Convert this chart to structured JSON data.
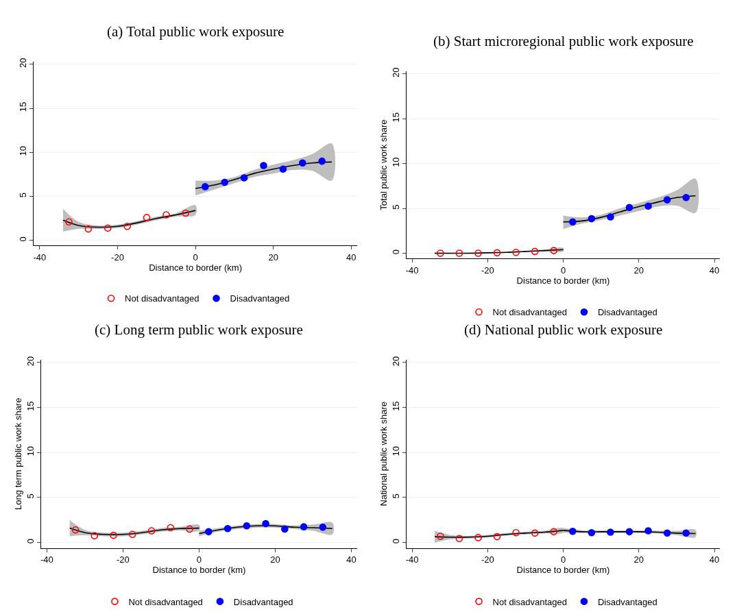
{
  "chart_data": [
    {
      "type": "scatter",
      "title": "(a) Total public work exposure",
      "xlabel": "Distance to border (km)",
      "xlim": [
        -41.5,
        41.5
      ],
      "xticks": [
        -40,
        -20,
        0,
        20,
        40
      ],
      "ylim": [
        -0.6,
        20.3
      ],
      "yticks": [
        0,
        5,
        10,
        15,
        20
      ],
      "grid": "y",
      "legend": "bottom",
      "series": [
        {
          "name": "Not disadvantaged",
          "color": "#ff0000",
          "marker": "circle",
          "x": [
            -32.5,
            -27.5,
            -22.5,
            -17.5,
            -12.5,
            -7.5,
            -2.5
          ],
          "values": [
            2.1,
            1.3,
            1.4,
            1.6,
            2.6,
            2.9,
            3.1
          ]
        },
        {
          "name": "Disadvantaged",
          "color": "#0000ff",
          "marker": "circle",
          "x": [
            2.5,
            7.5,
            12.5,
            17.5,
            22.5,
            27.5,
            32.5
          ],
          "values": [
            6.1,
            6.6,
            7.1,
            8.5,
            8.1,
            8.8,
            9.0
          ]
        },
        {
          "type": "line",
          "color": "#000000",
          "x": [
            -34,
            -30,
            -25,
            -20,
            -15,
            -10,
            -5,
            0
          ],
          "values": [
            2.3,
            1.7,
            1.5,
            1.6,
            2.0,
            2.5,
            2.9,
            3.4
          ],
          "lower": [
            1.0,
            1.3,
            1.3,
            1.4,
            1.8,
            2.3,
            2.7,
            2.9
          ],
          "upper": [
            3.6,
            2.1,
            1.7,
            1.8,
            2.2,
            2.7,
            3.1,
            4.0
          ]
        },
        {
          "type": "line",
          "color": "#000000",
          "x": [
            0,
            5,
            10,
            15,
            20,
            25,
            30,
            35
          ],
          "values": [
            5.9,
            6.3,
            6.9,
            7.6,
            8.1,
            8.5,
            8.8,
            8.9
          ],
          "lower": [
            5.1,
            5.8,
            6.5,
            7.2,
            7.6,
            8.0,
            7.9,
            6.8
          ],
          "upper": [
            6.8,
            6.8,
            7.2,
            8.0,
            8.6,
            9.1,
            9.8,
            11.0
          ]
        }
      ]
    },
    {
      "type": "scatter",
      "title": "(b) Start microregional public work exposure",
      "xlabel": "Distance to border (km)",
      "ylabel": "Total public work share",
      "xlim": [
        -41.5,
        41.5
      ],
      "xticks": [
        -40,
        -20,
        0,
        20,
        40
      ],
      "ylim": [
        -0.6,
        20.3
      ],
      "yticks": [
        0,
        5,
        10,
        15,
        20
      ],
      "grid": "y",
      "legend": "bottom",
      "series": [
        {
          "name": "Not disadvantaged",
          "color": "#ff0000",
          "marker": "circle",
          "x": [
            -32.5,
            -27.5,
            -22.5,
            -17.5,
            -12.5,
            -7.5,
            -2.5
          ],
          "values": [
            0.0,
            0.0,
            0.0,
            0.05,
            0.1,
            0.2,
            0.3
          ]
        },
        {
          "name": "Disadvantaged",
          "color": "#0000ff",
          "marker": "circle",
          "x": [
            2.5,
            7.5,
            12.5,
            17.5,
            22.5,
            27.5,
            32.5
          ],
          "values": [
            3.5,
            3.85,
            4.05,
            5.1,
            5.25,
            5.95,
            6.2
          ]
        },
        {
          "type": "line",
          "color": "#000000",
          "x": [
            -34,
            -30,
            -25,
            -20,
            -15,
            -10,
            -5,
            0
          ],
          "values": [
            0.0,
            0.0,
            0.0,
            0.05,
            0.1,
            0.2,
            0.3,
            0.4
          ],
          "lower": [
            -0.1,
            -0.05,
            -0.05,
            0.0,
            0.05,
            0.15,
            0.2,
            0.2
          ],
          "upper": [
            0.1,
            0.05,
            0.05,
            0.1,
            0.15,
            0.25,
            0.4,
            0.6
          ]
        },
        {
          "type": "line",
          "color": "#000000",
          "x": [
            0,
            5,
            10,
            15,
            20,
            25,
            30,
            35
          ],
          "values": [
            3.5,
            3.6,
            4.0,
            4.6,
            5.2,
            5.7,
            6.2,
            6.4
          ],
          "lower": [
            2.7,
            3.3,
            3.7,
            4.2,
            4.7,
            5.2,
            5.3,
            4.5
          ],
          "upper": [
            4.2,
            4.0,
            4.3,
            5.0,
            5.6,
            6.2,
            7.0,
            8.3
          ]
        }
      ]
    },
    {
      "type": "scatter",
      "title": "(c) Long term public work exposure",
      "xlabel": "Distance to border (km)",
      "ylabel": "Long term public work share",
      "xlim": [
        -41.5,
        41.5
      ],
      "xticks": [
        -40,
        -20,
        0,
        20,
        40
      ],
      "ylim": [
        -0.6,
        20.3
      ],
      "yticks": [
        0,
        5,
        10,
        15,
        20
      ],
      "grid": "y",
      "legend": "bottom",
      "series": [
        {
          "name": "Not disadvantaged",
          "color": "#ff0000",
          "marker": "circle",
          "x": [
            -32.5,
            -27.5,
            -22.5,
            -17.5,
            -12.5,
            -7.5,
            -2.5
          ],
          "values": [
            1.4,
            0.75,
            0.8,
            0.9,
            1.3,
            1.65,
            1.5
          ]
        },
        {
          "name": "Disadvantaged",
          "color": "#0000ff",
          "marker": "circle",
          "x": [
            2.5,
            7.5,
            12.5,
            17.5,
            22.5,
            27.5,
            32.5
          ],
          "values": [
            1.2,
            1.55,
            1.85,
            2.1,
            1.5,
            1.75,
            1.7
          ]
        },
        {
          "type": "line",
          "color": "#000000",
          "x": [
            -34,
            -30,
            -25,
            -20,
            -15,
            -10,
            -5,
            0
          ],
          "values": [
            1.6,
            1.1,
            0.9,
            0.9,
            1.1,
            1.4,
            1.55,
            1.6
          ],
          "lower": [
            0.7,
            0.8,
            0.7,
            0.7,
            0.9,
            1.2,
            1.35,
            1.3
          ],
          "upper": [
            2.5,
            1.4,
            1.1,
            1.1,
            1.3,
            1.6,
            1.75,
            1.95
          ]
        },
        {
          "type": "line",
          "color": "#000000",
          "x": [
            0,
            5,
            10,
            15,
            20,
            25,
            30,
            35
          ],
          "values": [
            1.0,
            1.4,
            1.7,
            1.85,
            1.85,
            1.7,
            1.65,
            1.55
          ],
          "lower": [
            0.7,
            1.2,
            1.5,
            1.65,
            1.65,
            1.5,
            1.3,
            0.9
          ],
          "upper": [
            1.3,
            1.6,
            1.9,
            2.05,
            2.05,
            1.9,
            2.0,
            2.2
          ]
        }
      ]
    },
    {
      "type": "scatter",
      "title": "(d) National public work exposure",
      "xlabel": "Distance to border (km)",
      "ylabel": "National public work share",
      "xlim": [
        -41.5,
        41.5
      ],
      "xticks": [
        -40,
        -20,
        0,
        20,
        40
      ],
      "ylim": [
        -0.6,
        20.3
      ],
      "yticks": [
        0,
        5,
        10,
        15,
        20
      ],
      "grid": "y",
      "legend": "bottom",
      "series": [
        {
          "name": "Not disadvantaged",
          "color": "#ff0000",
          "marker": "circle",
          "x": [
            -32.5,
            -27.5,
            -22.5,
            -17.5,
            -12.5,
            -7.5,
            -2.5
          ],
          "values": [
            0.7,
            0.45,
            0.55,
            0.65,
            1.1,
            1.05,
            1.2
          ]
        },
        {
          "name": "Disadvantaged",
          "color": "#0000ff",
          "marker": "circle",
          "x": [
            2.5,
            7.5,
            12.5,
            17.5,
            22.5,
            27.5,
            32.5
          ],
          "values": [
            1.25,
            1.1,
            1.15,
            1.2,
            1.3,
            1.05,
            1.05
          ]
        },
        {
          "type": "line",
          "color": "#000000",
          "x": [
            -34,
            -30,
            -25,
            -20,
            -15,
            -10,
            -5,
            0
          ],
          "values": [
            0.65,
            0.6,
            0.6,
            0.7,
            0.9,
            1.05,
            1.15,
            1.35
          ],
          "lower": [
            0.0,
            0.35,
            0.45,
            0.55,
            0.75,
            0.9,
            1.0,
            1.1
          ],
          "upper": [
            1.3,
            0.85,
            0.75,
            0.85,
            1.05,
            1.2,
            1.3,
            1.6
          ]
        },
        {
          "type": "line",
          "color": "#000000",
          "x": [
            0,
            5,
            10,
            15,
            20,
            25,
            30,
            35
          ],
          "values": [
            1.35,
            1.2,
            1.2,
            1.2,
            1.2,
            1.15,
            1.05,
            1.0
          ],
          "lower": [
            1.1,
            1.05,
            1.05,
            1.05,
            1.05,
            1.0,
            0.8,
            0.6
          ],
          "upper": [
            1.6,
            1.35,
            1.35,
            1.35,
            1.35,
            1.3,
            1.3,
            1.4
          ]
        }
      ]
    }
  ]
}
